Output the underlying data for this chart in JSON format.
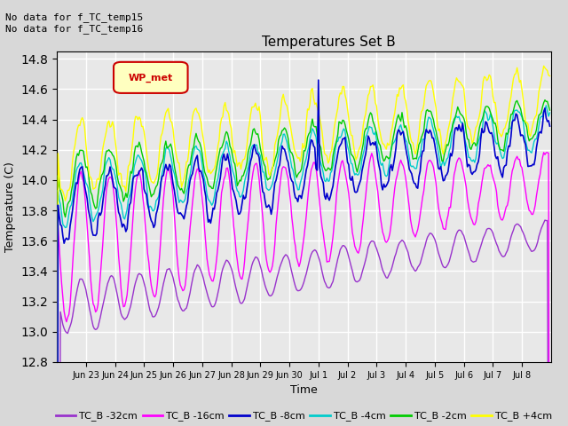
{
  "title": "Temperatures Set B",
  "xlabel": "Time",
  "ylabel": "Temperature (C)",
  "ylim": [
    12.8,
    14.85
  ],
  "yticks": [
    12.8,
    13.0,
    13.2,
    13.4,
    13.6,
    13.8,
    14.0,
    14.2,
    14.4,
    14.6,
    14.8
  ],
  "annotation_text": "No data for f_TC_temp15\nNo data for f_TC_temp16",
  "legend_label_text": "WP_met",
  "series_colors": {
    "TC_B -32cm": "#9933cc",
    "TC_B -16cm": "#ff00ff",
    "TC_B -8cm": "#0000cc",
    "TC_B -4cm": "#00cccc",
    "TC_B -2cm": "#00cc00",
    "TC_B +4cm": "#ffff00"
  },
  "background_color": "#d8d8d8",
  "plot_bg_color": "#e8e8e8",
  "grid_color": "#ffffff"
}
